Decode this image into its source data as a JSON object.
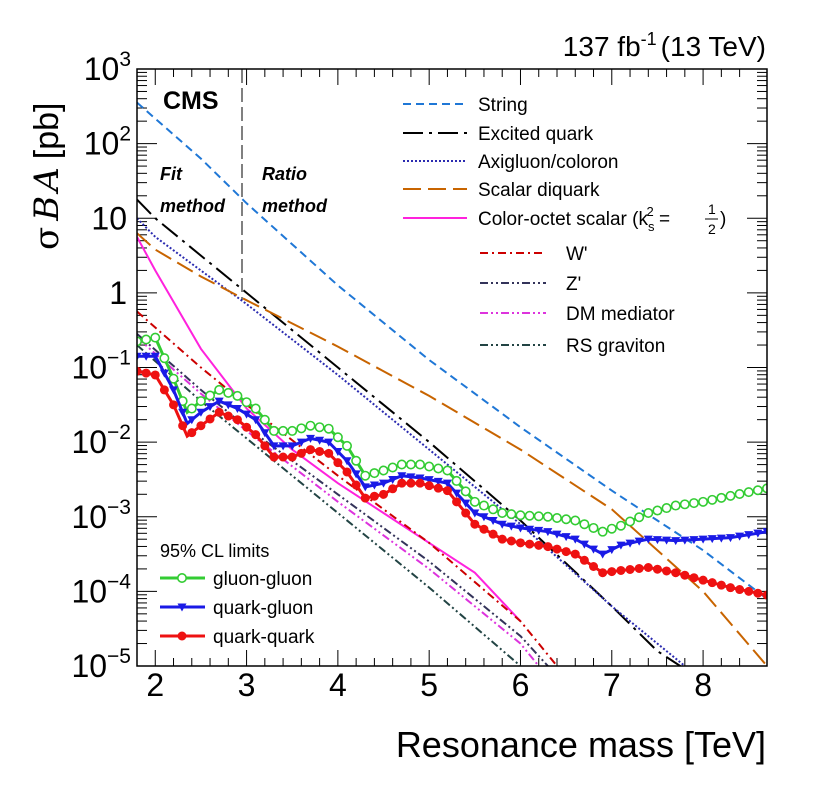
{
  "chart_data": {
    "type": "line",
    "lumi_label": "137 fb",
    "lumi_exp": "-1",
    "lumi_energy": "(13 TeV)",
    "experiment": "CMS",
    "ylabel_sigma": "σ",
    "ylabel_B": "B",
    "ylabel_A": "A",
    "ylabel_unit": "[pb]",
    "xlabel": "Resonance mass [TeV]",
    "xlim": [
      1.8,
      8.7
    ],
    "ylim_log10": [
      -5,
      3
    ],
    "x_ticks": [
      {
        "value": 2,
        "label": "2"
      },
      {
        "value": 3,
        "label": "3"
      },
      {
        "value": 4,
        "label": "4"
      },
      {
        "value": 5,
        "label": "5"
      },
      {
        "value": 6,
        "label": "6"
      },
      {
        "value": 7,
        "label": "7"
      },
      {
        "value": 8,
        "label": "8"
      }
    ],
    "y_ticks": [
      {
        "log10": 3,
        "base": "10",
        "exp": "3"
      },
      {
        "log10": 2,
        "base": "10",
        "exp": "2"
      },
      {
        "log10": 1,
        "base": "10",
        "exp": ""
      },
      {
        "log10": 0,
        "base": "1",
        "exp": ""
      },
      {
        "log10": -1,
        "base": "10",
        "exp": "−1"
      },
      {
        "log10": -2,
        "base": "10",
        "exp": "−2"
      },
      {
        "log10": -3,
        "base": "10",
        "exp": "−3"
      },
      {
        "log10": -4,
        "base": "10",
        "exp": "−4"
      },
      {
        "log10": -5,
        "base": "10",
        "exp": "−5"
      }
    ],
    "method_boundary_x": 2.95,
    "fit_method_label": [
      "Fit",
      "method"
    ],
    "ratio_method_label": [
      "Ratio",
      "method"
    ],
    "theory_legend": [
      {
        "key": "string",
        "label": "String"
      },
      {
        "key": "excited",
        "label": "Excited quark"
      },
      {
        "key": "axigluon",
        "label": "Axigluon/coloron"
      },
      {
        "key": "diquark",
        "label": "Scalar diquark"
      },
      {
        "key": "coloroctet",
        "label": "Color-octet scalar (k",
        "sub": "s",
        "sup": "2",
        "tail": " = ",
        "frac_num": "1",
        "frac_den": "2",
        "close": ")"
      },
      {
        "key": "wprime",
        "label": "W'"
      },
      {
        "key": "zprime",
        "label": "Z'"
      },
      {
        "key": "dm",
        "label": "DM mediator"
      },
      {
        "key": "rsgrav",
        "label": "RS graviton"
      }
    ],
    "limits_title": "95% CL limits",
    "limit_legend": [
      {
        "key": "gg",
        "label": "gluon-gluon"
      },
      {
        "key": "qg",
        "label": "quark-gluon"
      },
      {
        "key": "qq",
        "label": "quark-quark"
      }
    ],
    "styles": {
      "string": {
        "color": "#1f77d6",
        "dash": "8,5"
      },
      "excited": {
        "color": "#000000",
        "dash": "20,6,3,6"
      },
      "axigluon": {
        "color": "#2b2bb0",
        "dash": "2,2"
      },
      "diquark": {
        "color": "#c86400",
        "dash": "18,7"
      },
      "coloroctet": {
        "color": "#ff22dd",
        "dash": ""
      },
      "wprime": {
        "color": "#cc0000",
        "dash": "8,4,2,4"
      },
      "zprime": {
        "color": "#33335a",
        "dash": "8,3,2,3,2,3"
      },
      "dm": {
        "color": "#dd33dd",
        "dash": "8,3,2,3,2,3"
      },
      "rsgrav": {
        "color": "#224444",
        "dash": "8,3,2,3,2,3"
      },
      "gg": {
        "color": "#33cc33"
      },
      "qg": {
        "color": "#1a1ae6"
      },
      "qq": {
        "color": "#ee1111"
      }
    },
    "theory_series": [
      {
        "key": "string",
        "x": [
          1.8,
          2.5,
          3.0,
          4.0,
          5.0,
          6.0,
          7.0,
          7.5,
          8.0,
          8.7
        ],
        "log10y": [
          2.55,
          1.8,
          1.2,
          0.1,
          -0.9,
          -1.8,
          -2.65,
          -3.05,
          -3.45,
          -4.1
        ]
      },
      {
        "key": "excited",
        "x": [
          1.8,
          2.0,
          2.5,
          3.0,
          4.0,
          5.0,
          6.0,
          7.0,
          7.5,
          8.0
        ],
        "log10y": [
          1.25,
          1.0,
          0.5,
          0.0,
          -1.0,
          -2.0,
          -3.05,
          -4.2,
          -4.8,
          -5.2
        ]
      },
      {
        "key": "axigluon",
        "x": [
          1.8,
          2.0,
          2.5,
          3.0,
          4.0,
          5.0,
          6.0,
          7.0,
          7.5,
          7.8
        ],
        "log10y": [
          1.0,
          0.75,
          0.3,
          -0.15,
          -1.1,
          -2.1,
          -3.1,
          -4.2,
          -4.7,
          -5.0
        ]
      },
      {
        "key": "diquark",
        "x": [
          1.8,
          2.0,
          2.5,
          3.0,
          4.0,
          5.0,
          6.0,
          7.0,
          8.0,
          8.7
        ],
        "log10y": [
          0.8,
          0.58,
          0.22,
          -0.1,
          -0.72,
          -1.38,
          -2.1,
          -2.9,
          -4.0,
          -5.0
        ]
      },
      {
        "key": "coloroctet",
        "x": [
          1.8,
          2.0,
          2.5,
          3.0,
          3.5,
          4.0,
          4.5,
          5.0,
          5.5,
          6.0
        ],
        "log10y": [
          0.75,
          0.3,
          -0.75,
          -1.55,
          -2.1,
          -2.55,
          -2.95,
          -3.35,
          -3.75,
          -4.4
        ]
      },
      {
        "key": "wprime",
        "x": [
          1.8,
          2.5,
          3.0,
          4.0,
          5.0,
          6.0,
          6.4
        ],
        "log10y": [
          -0.25,
          -1.0,
          -1.5,
          -2.45,
          -3.35,
          -4.4,
          -5.0
        ]
      },
      {
        "key": "zprime",
        "x": [
          1.8,
          2.5,
          3.0,
          4.0,
          5.0,
          6.0,
          6.3
        ],
        "log10y": [
          -0.55,
          -1.3,
          -1.8,
          -2.7,
          -3.6,
          -4.6,
          -5.0
        ]
      },
      {
        "key": "dm",
        "x": [
          1.8,
          2.5,
          3.0,
          4.0,
          5.0,
          6.0,
          6.2
        ],
        "log10y": [
          -0.6,
          -1.35,
          -1.85,
          -2.8,
          -3.7,
          -4.7,
          -5.0
        ]
      },
      {
        "key": "rsgrav",
        "x": [
          1.8,
          2.5,
          3.0,
          4.0,
          5.0,
          6.0
        ],
        "log10y": [
          -0.7,
          -1.45,
          -1.95,
          -2.95,
          -3.95,
          -5.0
        ]
      }
    ],
    "limit_series": [
      {
        "key": "gg",
        "x": [
          1.8,
          2.0,
          2.2,
          2.35,
          2.5,
          2.7,
          2.9,
          3.1,
          3.3,
          3.5,
          3.7,
          3.9,
          4.1,
          4.3,
          4.5,
          4.7,
          4.9,
          5.2,
          5.5,
          5.8,
          6.0,
          6.3,
          6.6,
          6.9,
          7.1,
          7.4,
          7.7,
          8.0,
          8.3,
          8.7
        ],
        "log10y": [
          -0.65,
          -0.6,
          -1.15,
          -1.6,
          -1.45,
          -1.3,
          -1.38,
          -1.55,
          -1.85,
          -1.85,
          -1.78,
          -1.82,
          -2.05,
          -2.45,
          -2.38,
          -2.3,
          -2.3,
          -2.38,
          -2.8,
          -2.95,
          -2.98,
          -3.0,
          -3.05,
          -3.2,
          -3.12,
          -2.95,
          -2.85,
          -2.8,
          -2.72,
          -2.62
        ]
      },
      {
        "key": "qg",
        "x": [
          1.8,
          2.0,
          2.2,
          2.35,
          2.5,
          2.7,
          2.9,
          3.1,
          3.3,
          3.5,
          3.7,
          3.9,
          4.1,
          4.3,
          4.5,
          4.7,
          4.9,
          5.2,
          5.5,
          5.8,
          6.0,
          6.3,
          6.6,
          6.9,
          7.1,
          7.4,
          7.7,
          8.0,
          8.3,
          8.7
        ],
        "log10y": [
          -0.85,
          -0.85,
          -1.3,
          -1.75,
          -1.6,
          -1.45,
          -1.55,
          -1.7,
          -2.05,
          -2.05,
          -1.95,
          -2.0,
          -2.25,
          -2.6,
          -2.55,
          -2.45,
          -2.48,
          -2.55,
          -2.95,
          -3.1,
          -3.15,
          -3.2,
          -3.3,
          -3.5,
          -3.38,
          -3.3,
          -3.32,
          -3.3,
          -3.28,
          -3.2
        ]
      },
      {
        "key": "qq",
        "x": [
          1.8,
          2.0,
          2.2,
          2.35,
          2.5,
          2.7,
          2.9,
          3.1,
          3.3,
          3.5,
          3.7,
          3.9,
          4.1,
          4.3,
          4.5,
          4.7,
          4.9,
          5.2,
          5.5,
          5.8,
          6.0,
          6.3,
          6.6,
          6.9,
          7.1,
          7.4,
          7.7,
          8.0,
          8.3,
          8.7
        ],
        "log10y": [
          -1.05,
          -1.1,
          -1.5,
          -1.92,
          -1.78,
          -1.6,
          -1.7,
          -1.9,
          -2.2,
          -2.2,
          -2.1,
          -2.15,
          -2.4,
          -2.75,
          -2.7,
          -2.55,
          -2.55,
          -2.65,
          -3.1,
          -3.3,
          -3.35,
          -3.4,
          -3.5,
          -3.75,
          -3.72,
          -3.68,
          -3.75,
          -3.85,
          -3.95,
          -4.05
        ]
      }
    ]
  }
}
